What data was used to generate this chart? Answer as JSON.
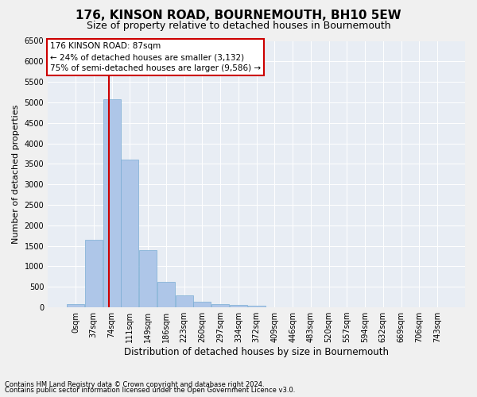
{
  "title": "176, KINSON ROAD, BOURNEMOUTH, BH10 5EW",
  "subtitle": "Size of property relative to detached houses in Bournemouth",
  "xlabel": "Distribution of detached houses by size in Bournemouth",
  "ylabel": "Number of detached properties",
  "footer_line1": "Contains HM Land Registry data © Crown copyright and database right 2024.",
  "footer_line2": "Contains public sector information licensed under the Open Government Licence v3.0.",
  "bar_labels": [
    "0sqm",
    "37sqm",
    "74sqm",
    "111sqm",
    "149sqm",
    "186sqm",
    "223sqm",
    "260sqm",
    "297sqm",
    "334sqm",
    "372sqm",
    "409sqm",
    "446sqm",
    "483sqm",
    "520sqm",
    "557sqm",
    "594sqm",
    "632sqm",
    "669sqm",
    "706sqm",
    "743sqm"
  ],
  "bar_values": [
    75,
    1640,
    5080,
    3600,
    1400,
    620,
    300,
    145,
    80,
    55,
    40,
    0,
    0,
    0,
    0,
    0,
    0,
    0,
    0,
    0,
    0
  ],
  "bar_color": "#aec6e8",
  "bar_edge_color": "#7aadd4",
  "background_color": "#e8edf4",
  "grid_color": "#ffffff",
  "fig_background": "#f0f0f0",
  "vline_color": "#cc0000",
  "annotation_box_text": "176 KINSON ROAD: 87sqm\n← 24% of detached houses are smaller (3,132)\n75% of semi-detached houses are larger (9,586) →",
  "ylim": [
    0,
    6500
  ],
  "yticks": [
    0,
    500,
    1000,
    1500,
    2000,
    2500,
    3000,
    3500,
    4000,
    4500,
    5000,
    5500,
    6000,
    6500
  ],
  "title_fontsize": 11,
  "subtitle_fontsize": 9,
  "xlabel_fontsize": 8.5,
  "ylabel_fontsize": 8,
  "tick_fontsize": 7,
  "annotation_fontsize": 7.5,
  "footer_fontsize": 6
}
